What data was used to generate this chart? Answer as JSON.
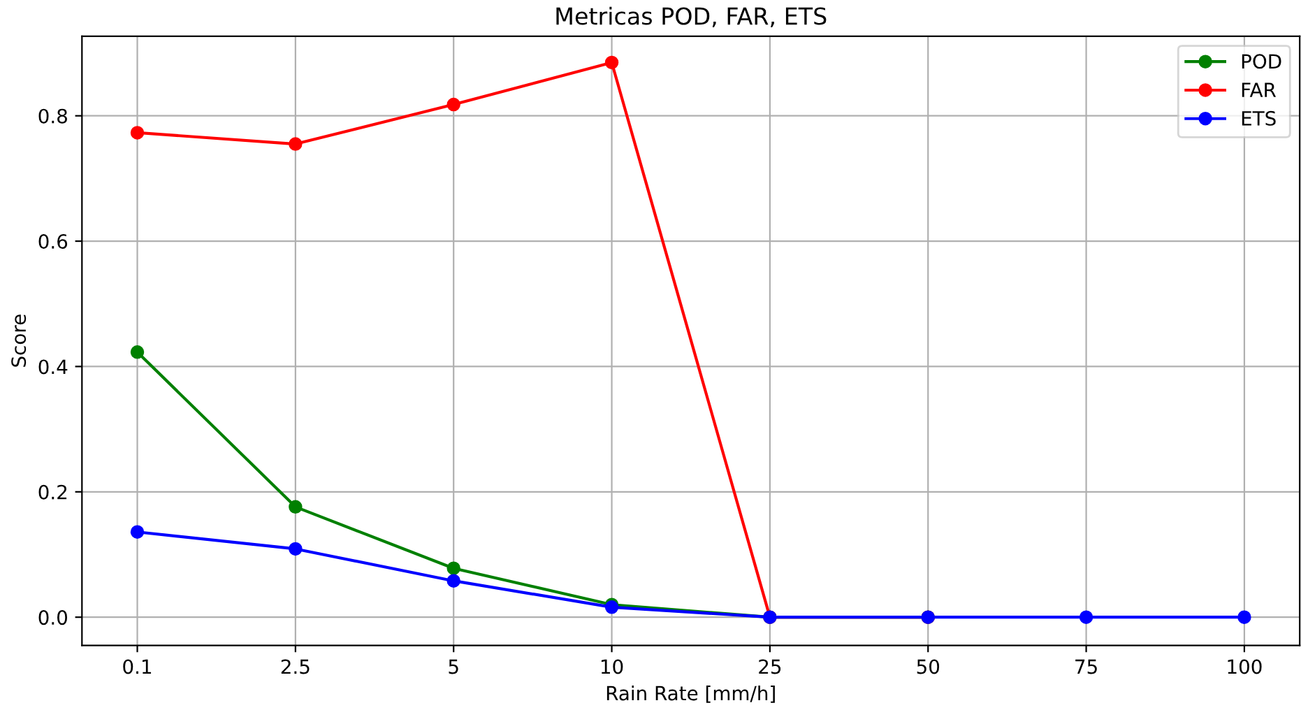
{
  "chart_data": {
    "type": "line",
    "title": "Metricas POD, FAR, ETS",
    "xlabel": "Rain Rate [mm/h]",
    "ylabel": "Score",
    "categories": [
      "0.1",
      "2.5",
      "5",
      "10",
      "25",
      "50",
      "75",
      "100"
    ],
    "series": [
      {
        "name": "POD",
        "color": "#008000",
        "values": [
          0.423,
          0.176,
          0.078,
          0.02,
          0,
          0,
          null,
          null
        ]
      },
      {
        "name": "FAR",
        "color": "#ff0000",
        "values": [
          0.773,
          0.755,
          0.818,
          0.885,
          0,
          0,
          null,
          null
        ]
      },
      {
        "name": "ETS",
        "color": "#0000ff",
        "values": [
          0.136,
          0.109,
          0.058,
          0.016,
          0,
          0,
          0,
          0
        ]
      }
    ],
    "ylim": [
      -0.045,
      0.927
    ],
    "yticks": [
      {
        "value": 0,
        "label": "0.0"
      },
      0.2,
      0.4,
      0.6,
      0.8
    ],
    "grid": true,
    "legend": "top right",
    "marker": "circle",
    "line_style": "solid"
  }
}
